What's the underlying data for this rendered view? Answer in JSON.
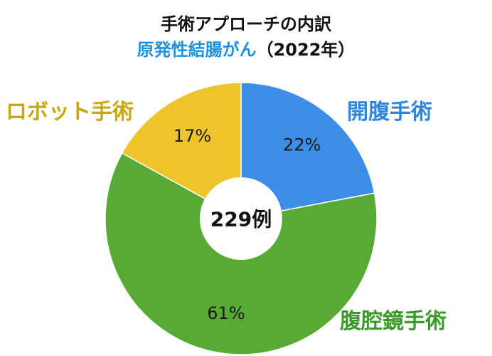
{
  "chart_data": {
    "type": "pie",
    "variant": "donut",
    "title": "手術アプローチの内訳",
    "subtitle": "原発性結腸がん",
    "subtitle_year": "（2022年）",
    "center_label": "229例",
    "slices": [
      {
        "name": "開腹手術",
        "value": 22,
        "value_label": "22%",
        "color": "#3d8ee8"
      },
      {
        "name": "腹腔鏡手術",
        "value": 61,
        "value_label": "61%",
        "color": "#58a935"
      },
      {
        "name": "ロボット手術",
        "value": 17,
        "value_label": "17%",
        "color": "#eec42b"
      }
    ]
  }
}
